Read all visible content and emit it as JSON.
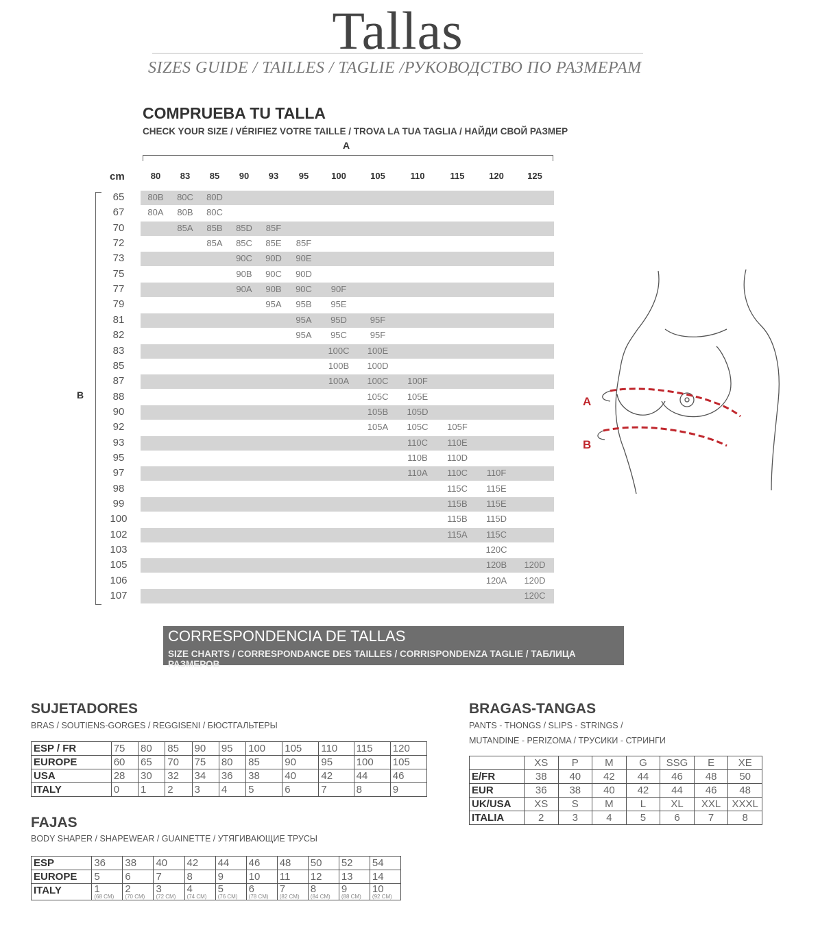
{
  "header": {
    "title": "Tallas",
    "subtitle": "SIZES GUIDE / TAILLES / TAGLIE /РУКОВОДСТВО ПО РАЗМЕРАМ"
  },
  "check": {
    "title": "COMPRUEBA TU TALLA",
    "subtitle": "CHECK YOUR SIZE / VÉRIFIEZ VOTRE TAILLE / TROVA LA TUA TAGLIA / НАЙДИ СВОЙ РАЗМЕР",
    "axis_a": "A",
    "axis_b": "B",
    "unit": "cm",
    "columns": [
      "80",
      "83",
      "85",
      "90",
      "93",
      "95",
      "100",
      "105",
      "110",
      "115",
      "120",
      "125"
    ],
    "rows": [
      {
        "b": "65",
        "cells": [
          "80B",
          "80C",
          "80D",
          "",
          "",
          "",
          "",
          "",
          "",
          "",
          "",
          ""
        ]
      },
      {
        "b": "67",
        "cells": [
          "80A",
          "80B",
          "80C",
          "",
          "",
          "",
          "",
          "",
          "",
          "",
          "",
          ""
        ]
      },
      {
        "b": "70",
        "cells": [
          "",
          "85A",
          "85B",
          "85D",
          "85F",
          "",
          "",
          "",
          "",
          "",
          "",
          ""
        ]
      },
      {
        "b": "72",
        "cells": [
          "",
          "",
          "85A",
          "85C",
          "85E",
          "85F",
          "",
          "",
          "",
          "",
          "",
          ""
        ]
      },
      {
        "b": "73",
        "cells": [
          "",
          "",
          "",
          "90C",
          "90D",
          "90E",
          "",
          "",
          "",
          "",
          "",
          ""
        ]
      },
      {
        "b": "75",
        "cells": [
          "",
          "",
          "",
          "90B",
          "90C",
          "90D",
          "",
          "",
          "",
          "",
          "",
          ""
        ]
      },
      {
        "b": "77",
        "cells": [
          "",
          "",
          "",
          "90A",
          "90B",
          "90C",
          "90F",
          "",
          "",
          "",
          "",
          ""
        ]
      },
      {
        "b": "79",
        "cells": [
          "",
          "",
          "",
          "",
          "95A",
          "95B",
          "95E",
          "",
          "",
          "",
          "",
          ""
        ]
      },
      {
        "b": "81",
        "cells": [
          "",
          "",
          "",
          "",
          "",
          "95A",
          "95D",
          "95F",
          "",
          "",
          "",
          ""
        ]
      },
      {
        "b": "82",
        "cells": [
          "",
          "",
          "",
          "",
          "",
          "95A",
          "95C",
          "95F",
          "",
          "",
          "",
          ""
        ]
      },
      {
        "b": "83",
        "cells": [
          "",
          "",
          "",
          "",
          "",
          "",
          "100C",
          "100E",
          "",
          "",
          "",
          ""
        ]
      },
      {
        "b": "85",
        "cells": [
          "",
          "",
          "",
          "",
          "",
          "",
          "100B",
          "100D",
          "",
          "",
          "",
          ""
        ]
      },
      {
        "b": "87",
        "cells": [
          "",
          "",
          "",
          "",
          "",
          "",
          "100A",
          "100C",
          "100F",
          "",
          "",
          ""
        ]
      },
      {
        "b": "88",
        "cells": [
          "",
          "",
          "",
          "",
          "",
          "",
          "",
          "105C",
          "105E",
          "",
          "",
          ""
        ]
      },
      {
        "b": "90",
        "cells": [
          "",
          "",
          "",
          "",
          "",
          "",
          "",
          "105B",
          "105D",
          "",
          "",
          ""
        ]
      },
      {
        "b": "92",
        "cells": [
          "",
          "",
          "",
          "",
          "",
          "",
          "",
          "105A",
          "105C",
          "105F",
          "",
          ""
        ]
      },
      {
        "b": "93",
        "cells": [
          "",
          "",
          "",
          "",
          "",
          "",
          "",
          "",
          "110C",
          "110E",
          "",
          ""
        ]
      },
      {
        "b": "95",
        "cells": [
          "",
          "",
          "",
          "",
          "",
          "",
          "",
          "",
          "110B",
          "110D",
          "",
          ""
        ]
      },
      {
        "b": "97",
        "cells": [
          "",
          "",
          "",
          "",
          "",
          "",
          "",
          "",
          "110A",
          "110C",
          "110F",
          ""
        ]
      },
      {
        "b": "98",
        "cells": [
          "",
          "",
          "",
          "",
          "",
          "",
          "",
          "",
          "",
          "115C",
          "115E",
          ""
        ]
      },
      {
        "b": "99",
        "cells": [
          "",
          "",
          "",
          "",
          "",
          "",
          "",
          "",
          "",
          "115B",
          "115E",
          ""
        ]
      },
      {
        "b": "100",
        "cells": [
          "",
          "",
          "",
          "",
          "",
          "",
          "",
          "",
          "",
          "115B",
          "115D",
          ""
        ]
      },
      {
        "b": "102",
        "cells": [
          "",
          "",
          "",
          "",
          "",
          "",
          "",
          "",
          "",
          "115A",
          "115C",
          ""
        ]
      },
      {
        "b": "103",
        "cells": [
          "",
          "",
          "",
          "",
          "",
          "",
          "",
          "",
          "",
          "",
          "120C",
          ""
        ]
      },
      {
        "b": "105",
        "cells": [
          "",
          "",
          "",
          "",
          "",
          "",
          "",
          "",
          "",
          "",
          "120B",
          "120D"
        ]
      },
      {
        "b": "106",
        "cells": [
          "",
          "",
          "",
          "",
          "",
          "",
          "",
          "",
          "",
          "",
          "120A",
          "120D"
        ]
      },
      {
        "b": "107",
        "cells": [
          "",
          "",
          "",
          "",
          "",
          "",
          "",
          "",
          "",
          "",
          "",
          "120C"
        ]
      }
    ]
  },
  "illustration": {
    "label_a": "A",
    "label_b": "B",
    "accent": "#c0272d"
  },
  "correspondence": {
    "title": "CORRESPONDENCIA DE TALLAS",
    "subtitle": "SIZE CHARTS / CORRESPONDANCE DES TAILLES / CORRISPONDENZA TAGLIE / ТАБЛИЦА РАЗМЕРОВ"
  },
  "sujetadores": {
    "title": "SUJETADORES",
    "subtitle": "BRAS / SOUTIENS-GORGES / REGGISENI / БЮСТГАЛЬТЕРЫ",
    "rows": [
      [
        "ESP / FR",
        "75",
        "80",
        "85",
        "90",
        "95",
        "100",
        "105",
        "110",
        "115",
        "120"
      ],
      [
        "EUROPE",
        "60",
        "65",
        "70",
        "75",
        "80",
        "85",
        "90",
        "95",
        "100",
        "105"
      ],
      [
        "USA",
        "28",
        "30",
        "32",
        "34",
        "36",
        "38",
        "40",
        "42",
        "44",
        "46"
      ],
      [
        "ITALY",
        "0",
        "1",
        "2",
        "3",
        "4",
        "5",
        "6",
        "7",
        "8",
        "9"
      ]
    ]
  },
  "fajas": {
    "title": "FAJAS",
    "subtitle": "BODY SHAPER / SHAPEWEAR / GUAINETTE / УТЯГИВАЮЩИЕ ТРУСЫ",
    "rows": [
      [
        "ESP",
        "36",
        "38",
        "40",
        "42",
        "44",
        "46",
        "48",
        "50",
        "52",
        "54"
      ],
      [
        "EUROPE",
        "5",
        "6",
        "7",
        "8",
        "9",
        "10",
        "11",
        "12",
        "13",
        "14"
      ]
    ],
    "italy": {
      "label": "ITALY",
      "values": [
        "1",
        "2",
        "3",
        "4",
        "5",
        "6",
        "7",
        "8",
        "9",
        "10"
      ],
      "notes": [
        "(68 CM)",
        "(70 CM)",
        "(72 CM)",
        "(74 CM)",
        "(76 CM)",
        "(78 CM)",
        "(82 CM)",
        "(84 CM)",
        "(88 CM)",
        "(92 CM)"
      ]
    }
  },
  "bragas": {
    "title": "BRAGAS-TANGAS",
    "subtitle1": "PANTS - THONGS / SLIPS - STRINGS /",
    "subtitle2": "MUTANDINE - PERIZOMA / ТРУСИКИ - СТРИНГИ",
    "rows": [
      [
        "",
        "XS",
        "P",
        "M",
        "G",
        "SSG",
        "E",
        "XE"
      ],
      [
        "E/FR",
        "38",
        "40",
        "42",
        "44",
        "46",
        "48",
        "50"
      ],
      [
        "EUR",
        "36",
        "38",
        "40",
        "42",
        "44",
        "46",
        "48"
      ],
      [
        "UK/USA",
        "XS",
        "S",
        "M",
        "L",
        "XL",
        "XXL",
        "XXXL"
      ],
      [
        "ITALIA",
        "2",
        "3",
        "4",
        "5",
        "6",
        "7",
        "8"
      ]
    ]
  }
}
